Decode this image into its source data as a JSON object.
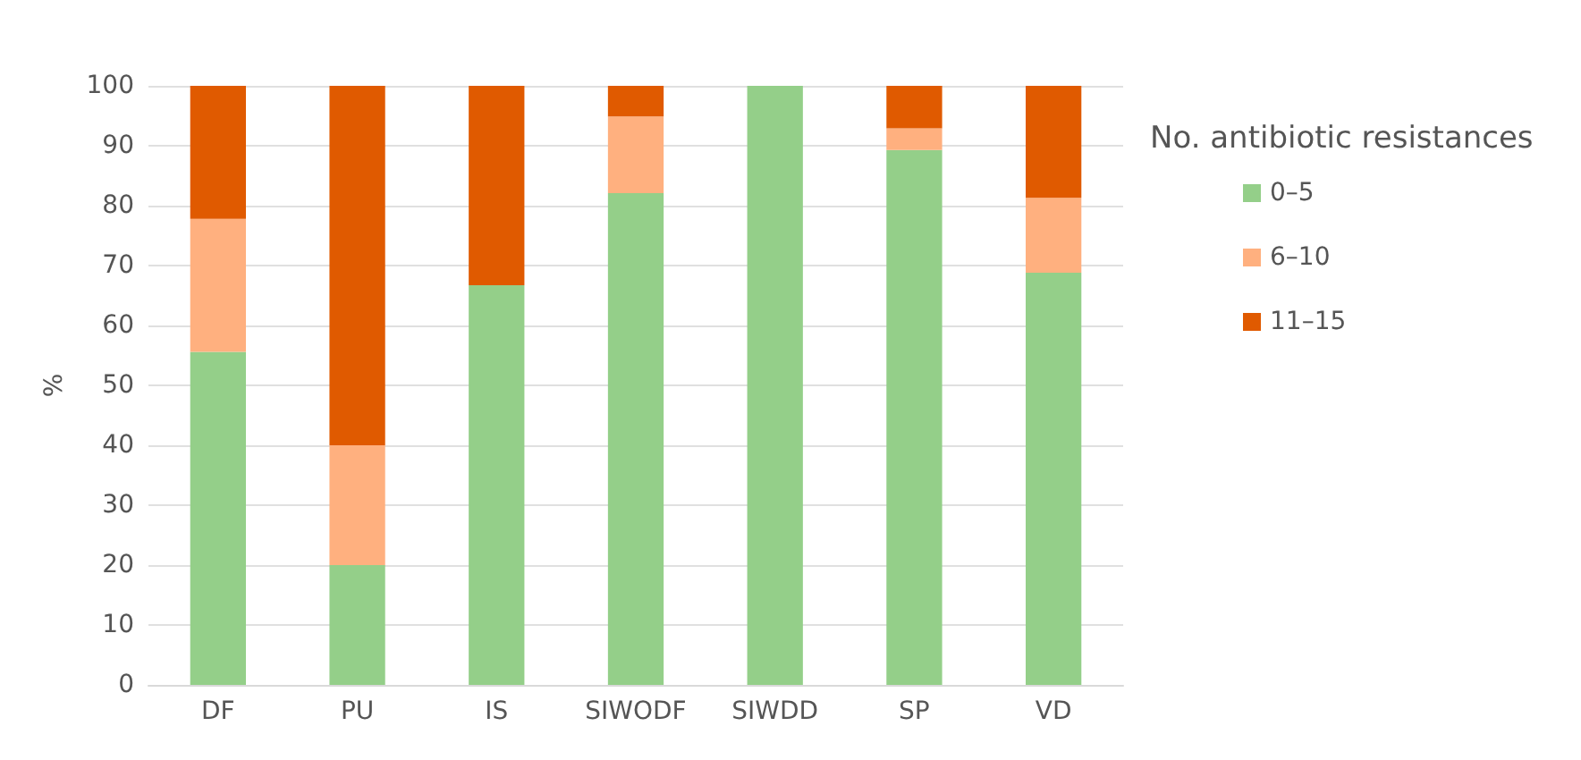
{
  "chart_data": {
    "type": "bar",
    "stacked": true,
    "ylabel": "%",
    "legend_title": "No. antibiotic resistances",
    "categories": [
      "DF",
      "PU",
      "IS",
      "SIWODF",
      "SIWDD",
      "SP",
      "VD"
    ],
    "series": [
      {
        "name": "0–5",
        "color": "#94cf89",
        "values": [
          55.6,
          20,
          66.7,
          82.1,
          100,
          89.3,
          68.8
        ]
      },
      {
        "name": "6–10",
        "color": "#ffb07f",
        "values": [
          22.2,
          20,
          0,
          12.8,
          0,
          3.6,
          12.5
        ]
      },
      {
        "name": "11–15",
        "color": "#e05a00",
        "values": [
          22.2,
          60,
          33.3,
          5.1,
          0,
          7.1,
          18.7
        ]
      }
    ],
    "ylim": [
      0,
      100
    ],
    "yticks": [
      0,
      10,
      20,
      30,
      40,
      50,
      60,
      70,
      80,
      90,
      100
    ],
    "grid": "y",
    "legend": "right"
  }
}
